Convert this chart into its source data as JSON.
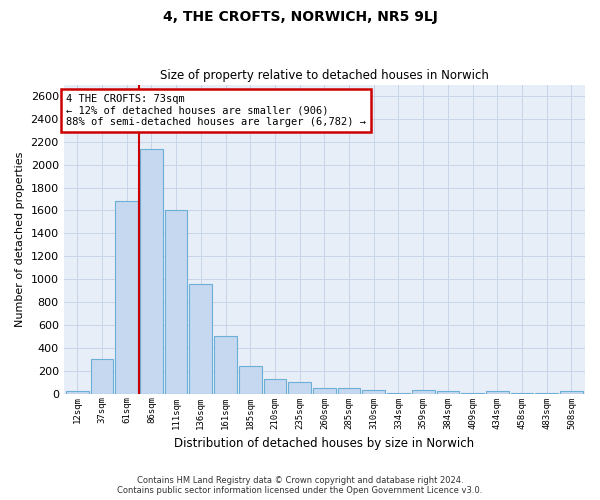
{
  "title": "4, THE CROFTS, NORWICH, NR5 9LJ",
  "subtitle": "Size of property relative to detached houses in Norwich",
  "xlabel": "Distribution of detached houses by size in Norwich",
  "ylabel": "Number of detached properties",
  "footer_line1": "Contains HM Land Registry data © Crown copyright and database right 2024.",
  "footer_line2": "Contains public sector information licensed under the Open Government Licence v3.0.",
  "annotation_title": "4 THE CROFTS: 73sqm",
  "annotation_line1": "← 12% of detached houses are smaller (906)",
  "annotation_line2": "88% of semi-detached houses are larger (6,782) →",
  "bar_categories": [
    "12sqm",
    "37sqm",
    "61sqm",
    "86sqm",
    "111sqm",
    "136sqm",
    "161sqm",
    "185sqm",
    "210sqm",
    "235sqm",
    "260sqm",
    "285sqm",
    "310sqm",
    "334sqm",
    "359sqm",
    "384sqm",
    "409sqm",
    "434sqm",
    "458sqm",
    "483sqm",
    "508sqm"
  ],
  "bar_values": [
    25,
    300,
    1680,
    2140,
    1600,
    960,
    505,
    240,
    125,
    100,
    50,
    50,
    35,
    5,
    35,
    20,
    5,
    20,
    5,
    5,
    25
  ],
  "bar_color": "#c5d8f0",
  "bar_edge_color": "#6baed6",
  "vline_x_index": 2.5,
  "vline_color": "#cc0000",
  "annotation_box_color": "#cc0000",
  "grid_color": "#c8d4e8",
  "background_color": "#e8eef8",
  "ylim": [
    0,
    2700
  ],
  "yticks": [
    0,
    200,
    400,
    600,
    800,
    1000,
    1200,
    1400,
    1600,
    1800,
    2000,
    2200,
    2400,
    2600
  ]
}
